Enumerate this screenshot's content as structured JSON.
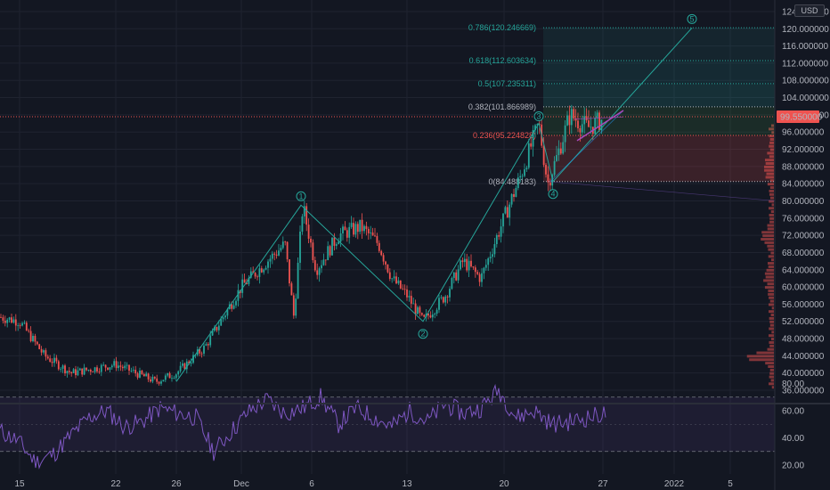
{
  "currency": "USD",
  "chart_data": [
    {
      "type": "candlestick",
      "ylim": [
        34,
        125
      ],
      "price_ticks": [
        "36.000000",
        "40.000000",
        "44.000000",
        "48.000000",
        "52.000000",
        "56.000000",
        "60.000000",
        "64.000000",
        "68.000000",
        "72.000000",
        "76.000000",
        "80.000000",
        "84.000000",
        "88.000000",
        "92.000000",
        "96.000000",
        "100.000000",
        "104.000000",
        "108.000000",
        "112.000000",
        "116.000000",
        "120.000000",
        "124.000000"
      ],
      "x_ticks": [
        "15",
        "22",
        "26",
        "Dec",
        "6",
        "13",
        "20",
        "27",
        "2022",
        "5"
      ],
      "current_price": "99.550000",
      "approx_path": [
        {
          "x": 15,
          "y": 52
        },
        {
          "x": 22,
          "y": 40
        },
        {
          "x": 26,
          "y": 38
        },
        {
          "x": "Dec",
          "y": 60
        },
        {
          "x": 6,
          "y": 79
        },
        {
          "x": 13,
          "y": 53
        },
        {
          "x": 20,
          "y": 78
        },
        {
          "x": 27,
          "y": 98
        }
      ],
      "fibonacci": [
        {
          "label": "0.786(120.246669)",
          "level": 120.246669,
          "color": "#26a69a"
        },
        {
          "label": "0.618(112.603634)",
          "level": 112.603634,
          "color": "#26a69a"
        },
        {
          "label": "0.5(107.235311)",
          "level": 107.235311,
          "color": "#26a69a"
        },
        {
          "label": "0.382(101.866989)",
          "level": 101.866989,
          "color": "#b2b5be"
        },
        {
          "label": "0.236(95.224828)",
          "level": 95.224828,
          "color": "#ef5350"
        },
        {
          "label": "0(84.488183)",
          "level": 84.488183,
          "color": "#b2b5be"
        }
      ],
      "elliott_waves": [
        {
          "label": "1",
          "value": 79
        },
        {
          "label": "2",
          "value": 52
        },
        {
          "label": "3",
          "value": 98
        },
        {
          "label": "4",
          "value": 84.5
        },
        {
          "label": "5",
          "value": 120.2
        }
      ],
      "volume_profile": "right-side histogram, peaks near 44, 62 and 72"
    },
    {
      "type": "line",
      "indicator": "RSI",
      "ylim": [
        15,
        85
      ],
      "y_ticks": [
        "20.00",
        "40.00",
        "60.00",
        "80.00"
      ],
      "bands": [
        30,
        70
      ],
      "midline": 50,
      "approx_values": [
        45,
        38,
        22,
        28,
        42,
        55,
        60,
        48,
        52,
        62,
        58,
        55,
        30,
        45,
        60,
        68,
        58,
        62,
        70,
        50,
        62,
        55,
        48,
        60,
        52,
        65,
        58,
        62,
        75,
        55,
        60,
        50,
        52,
        55,
        58
      ]
    }
  ]
}
